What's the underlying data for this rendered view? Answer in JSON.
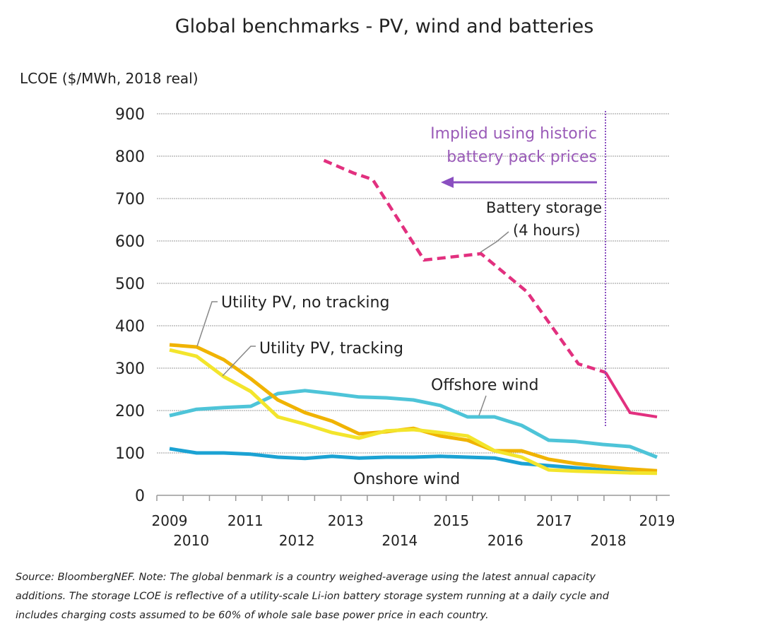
{
  "chart_data": {
    "type": "line",
    "title": "Global benchmarks - PV, wind and batteries",
    "ylabel": "LCOE ($/MWh, 2018 real)",
    "xlabel": "",
    "ylim": [
      0,
      900
    ],
    "yticks": [
      0,
      100,
      200,
      300,
      400,
      500,
      600,
      700,
      800,
      900
    ],
    "x_unit": "half-year index from 1H 2009",
    "xlim": [
      0,
      18
    ],
    "xtick_labels": [
      {
        "label": "2009",
        "x": 0,
        "row": 1
      },
      {
        "label": "2010",
        "x": 0.8,
        "row": 2
      },
      {
        "label": "2011",
        "x": 2.8,
        "row": 1
      },
      {
        "label": "2012",
        "x": 4.7,
        "row": 2
      },
      {
        "label": "2013",
        "x": 6.5,
        "row": 1
      },
      {
        "label": "2014",
        "x": 8.5,
        "row": 2
      },
      {
        "label": "2015",
        "x": 10.4,
        "row": 1
      },
      {
        "label": "2016",
        "x": 12.4,
        "row": 2
      },
      {
        "label": "2017",
        "x": 14.2,
        "row": 1
      },
      {
        "label": "2018",
        "x": 16.2,
        "row": 2
      },
      {
        "label": "2019",
        "x": 18,
        "row": 1
      }
    ],
    "grid": true,
    "series": [
      {
        "name": "Onshore wind",
        "color": "#1ba2d3",
        "values": [
          110,
          100,
          100,
          97,
          90,
          87,
          92,
          88,
          90,
          90,
          92,
          90,
          88,
          75,
          70,
          65,
          60,
          57,
          55
        ]
      },
      {
        "name": "Offshore wind",
        "color": "#4ec4d8",
        "values": [
          188,
          203,
          207,
          210,
          240,
          247,
          240,
          232,
          230,
          225,
          212,
          185,
          185,
          165,
          130,
          127,
          120,
          115,
          90
        ]
      },
      {
        "name": "Utility PV, no tracking",
        "color": "#f0b300",
        "values": [
          355,
          350,
          320,
          275,
          225,
          195,
          175,
          145,
          150,
          158,
          140,
          130,
          105,
          105,
          85,
          75,
          68,
          62,
          58
        ]
      },
      {
        "name": "Utility PV, tracking",
        "color": "#f3e52c",
        "values": [
          343,
          328,
          280,
          245,
          185,
          168,
          148,
          135,
          152,
          155,
          148,
          140,
          105,
          90,
          60,
          57,
          55,
          53,
          52
        ]
      },
      {
        "name": "Battery storage (4 hours)",
        "color": "#e2307f",
        "points": [
          [
            5.7,
            790
          ],
          [
            6.8,
            760
          ],
          [
            7.5,
            745
          ],
          [
            9.4,
            555
          ],
          [
            11.5,
            570
          ],
          [
            13.2,
            480
          ],
          [
            15.1,
            310
          ],
          [
            16.1,
            290
          ],
          [
            17,
            195
          ],
          [
            18,
            185
          ]
        ],
        "dashed_until_x": 16.1
      }
    ],
    "annotations": {
      "pv_no_tracking": "Utility PV, no tracking",
      "pv_tracking": "Utility PV, tracking",
      "battery_line1": "Battery storage",
      "battery_line2": "(4 hours)",
      "offshore": "Offshore wind",
      "onshore": "Onshore wind",
      "implied_line1": "Implied using historic",
      "implied_line2": "battery pack prices",
      "implied_color": "#9a5bb8",
      "divider_x": 16.1
    },
    "source": [
      "Source: BloombergNEF. Note: The global benmark is a country weighed-average using the latest annual capacity",
      "additions. The storage LCOE is reflective of a utility-scale Li-ion battery storage system running at a daily cycle and",
      "includes charging costs assumed to be 60% of whole sale base power price in each country."
    ]
  }
}
